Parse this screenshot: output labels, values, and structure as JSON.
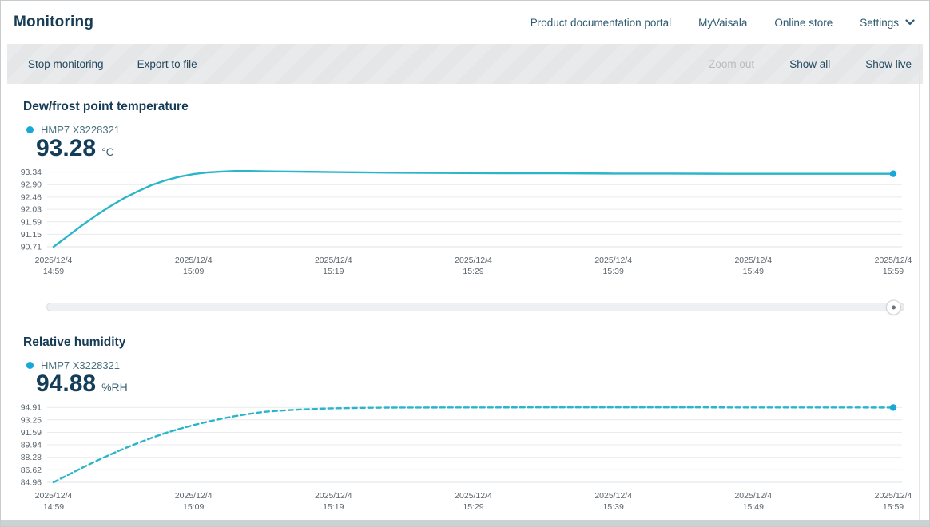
{
  "header": {
    "title": "Monitoring",
    "links": [
      "Product documentation portal",
      "MyVaisala",
      "Online store",
      "Settings"
    ]
  },
  "icons": {
    "settings_chevron": "chevron-down"
  },
  "toolbar": {
    "stop_monitoring": "Stop monitoring",
    "export_to_file": "Export to file",
    "zoom_out": "Zoom out",
    "show_all": "Show all",
    "show_live": "Show live",
    "zoom_out_disabled": true
  },
  "colors": {
    "heading": "#173C55",
    "nav_link": "#2E5970",
    "toolbar_text": "#24485F",
    "toolbar_text_disabled": "#B6BCBF",
    "toolbar_bg": "#E4E6E7",
    "value_text": "#143D5A",
    "legend_text": "#49707F",
    "tick_text": "#5A646D",
    "grid_line": "#E9EBEC",
    "axis_line": "#DEE2E4"
  },
  "chart_data": [
    {
      "type": "line",
      "title": "Dew/frost point temperature",
      "sensor": "HMP7 X3228321",
      "current_value": "93.28",
      "unit": "°C",
      "line_color": "#2BB5C9",
      "marker_color": "#18A8D8",
      "dashed": false,
      "grid": true,
      "legend_position": "top-left",
      "yticks": [
        "93.34",
        "92.90",
        "92.46",
        "92.03",
        "91.59",
        "91.15",
        "90.71"
      ],
      "ylim": [
        90.71,
        93.47
      ],
      "xticks": [
        {
          "date": "2025/12/4",
          "time": "14:59"
        },
        {
          "date": "2025/12/4",
          "time": "15:09"
        },
        {
          "date": "2025/12/4",
          "time": "15:19"
        },
        {
          "date": "2025/12/4",
          "time": "15:29"
        },
        {
          "date": "2025/12/4",
          "time": "15:39"
        },
        {
          "date": "2025/12/4",
          "time": "15:49"
        },
        {
          "date": "2025/12/4",
          "time": "15:59"
        }
      ],
      "xlim_minutes": [
        0,
        60
      ],
      "points_t_minutes_value": [
        [
          0,
          90.71
        ],
        [
          1,
          91.08
        ],
        [
          2,
          91.45
        ],
        [
          3,
          91.8
        ],
        [
          4,
          92.12
        ],
        [
          5,
          92.41
        ],
        [
          6,
          92.66
        ],
        [
          7,
          92.88
        ],
        [
          8,
          93.05
        ],
        [
          9,
          93.18
        ],
        [
          10,
          93.27
        ],
        [
          11,
          93.33
        ],
        [
          12,
          93.36
        ],
        [
          13,
          93.38
        ],
        [
          14,
          93.38
        ],
        [
          15,
          93.37
        ],
        [
          17,
          93.36
        ],
        [
          20,
          93.34
        ],
        [
          24,
          93.32
        ],
        [
          28,
          93.31
        ],
        [
          32,
          93.3
        ],
        [
          36,
          93.3
        ],
        [
          40,
          93.29
        ],
        [
          44,
          93.29
        ],
        [
          48,
          93.28
        ],
        [
          52,
          93.28
        ],
        [
          56,
          93.28
        ],
        [
          60,
          93.28
        ]
      ]
    },
    {
      "type": "line",
      "title": "Relative humidity",
      "sensor": "HMP7 X3228321",
      "current_value": "94.88",
      "unit": "%RH",
      "line_color": "#2BB5C9",
      "marker_color": "#18A8D8",
      "dashed": true,
      "grid": true,
      "legend_position": "top-left",
      "yticks": [
        "94.91",
        "93.25",
        "91.59",
        "89.94",
        "88.28",
        "86.62",
        "84.96"
      ],
      "ylim": [
        84.96,
        95.35
      ],
      "xticks": [
        {
          "date": "2025/12/4",
          "time": "14:59"
        },
        {
          "date": "2025/12/4",
          "time": "15:09"
        },
        {
          "date": "2025/12/4",
          "time": "15:19"
        },
        {
          "date": "2025/12/4",
          "time": "15:29"
        },
        {
          "date": "2025/12/4",
          "time": "15:39"
        },
        {
          "date": "2025/12/4",
          "time": "15:49"
        },
        {
          "date": "2025/12/4",
          "time": "15:59"
        }
      ],
      "xlim_minutes": [
        0,
        60
      ],
      "points_t_minutes_value": [
        [
          0,
          84.96
        ],
        [
          1,
          85.9
        ],
        [
          2,
          86.85
        ],
        [
          3,
          87.75
        ],
        [
          4,
          88.6
        ],
        [
          5,
          89.4
        ],
        [
          6,
          90.15
        ],
        [
          7,
          90.85
        ],
        [
          8,
          91.5
        ],
        [
          9,
          92.05
        ],
        [
          10,
          92.55
        ],
        [
          11,
          93.0
        ],
        [
          12,
          93.4
        ],
        [
          13,
          93.75
        ],
        [
          14,
          94.05
        ],
        [
          15,
          94.3
        ],
        [
          16,
          94.45
        ],
        [
          17,
          94.57
        ],
        [
          18,
          94.65
        ],
        [
          19,
          94.72
        ],
        [
          20,
          94.78
        ],
        [
          22,
          94.84
        ],
        [
          24,
          94.87
        ],
        [
          26,
          94.88
        ],
        [
          30,
          94.89
        ],
        [
          35,
          94.9
        ],
        [
          40,
          94.9
        ],
        [
          45,
          94.9
        ],
        [
          50,
          94.89
        ],
        [
          55,
          94.89
        ],
        [
          60,
          94.88
        ]
      ]
    }
  ]
}
